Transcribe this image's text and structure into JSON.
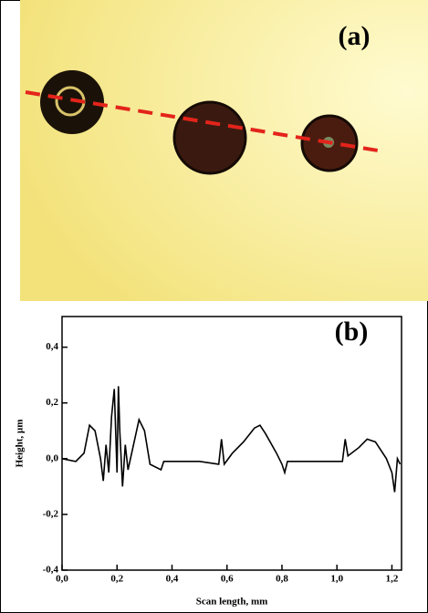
{
  "panel_a": {
    "label": "(a)"
  },
  "chart_data": {
    "type": "line",
    "label": "(b)",
    "x_label": "Scan length, mm",
    "y_label": "Height, µm",
    "xlim": [
      0,
      1.235
    ],
    "ylim": [
      -0.4,
      0.51
    ],
    "xticks": [
      {
        "value": 0,
        "label": "0,0"
      },
      {
        "value": 0.2,
        "label": "0,2"
      },
      {
        "value": 0.4,
        "label": "0,4"
      },
      {
        "value": 0.6,
        "label": "0,6"
      },
      {
        "value": 0.8,
        "label": "0,8"
      },
      {
        "value": 1.0,
        "label": "1,0"
      },
      {
        "value": 1.2,
        "label": "1,2"
      }
    ],
    "yticks": [
      {
        "value": 0.4,
        "label": "0,4"
      },
      {
        "value": 0.2,
        "label": "0,2"
      },
      {
        "value": 0,
        "label": "0,0"
      },
      {
        "value": -0.2,
        "label": "-0,2"
      },
      {
        "value": -0.4,
        "label": "-0,4"
      }
    ],
    "series": [
      {
        "color": "#000000",
        "x": [
          0.0,
          0.05,
          0.08,
          0.1,
          0.12,
          0.14,
          0.15,
          0.16,
          0.17,
          0.18,
          0.19,
          0.2,
          0.205,
          0.21,
          0.22,
          0.23,
          0.24,
          0.26,
          0.28,
          0.3,
          0.32,
          0.36,
          0.37,
          0.5,
          0.57,
          0.58,
          0.59,
          0.62,
          0.66,
          0.7,
          0.72,
          0.74,
          0.78,
          0.8,
          0.81,
          0.82,
          0.9,
          1.02,
          1.03,
          1.04,
          1.08,
          1.11,
          1.14,
          1.18,
          1.2,
          1.21,
          1.22,
          1.23
        ],
        "values": [
          0.0,
          -0.01,
          0.02,
          0.12,
          0.1,
          0.0,
          -0.08,
          0.05,
          -0.05,
          0.15,
          0.25,
          -0.05,
          0.26,
          0.1,
          -0.1,
          0.05,
          -0.04,
          0.05,
          0.14,
          0.1,
          -0.02,
          -0.04,
          -0.01,
          -0.01,
          -0.02,
          0.07,
          -0.02,
          0.02,
          0.06,
          0.11,
          0.12,
          0.09,
          0.02,
          -0.02,
          -0.05,
          -0.01,
          -0.01,
          -0.01,
          0.07,
          0.01,
          0.04,
          0.07,
          0.06,
          0.0,
          -0.05,
          -0.12,
          0.0,
          -0.02
        ]
      }
    ]
  }
}
